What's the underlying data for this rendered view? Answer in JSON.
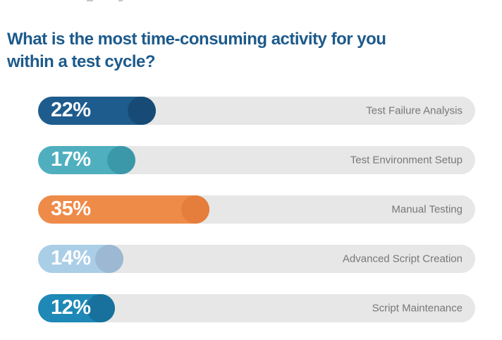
{
  "page": {
    "background": "#ffffff"
  },
  "title": {
    "lines": [
      "What is the most time-consuming activity for you",
      "within a test cycle?"
    ],
    "full": "What is the most time-consuming activity for you within a test cycle?",
    "color": "#1D5A8B"
  },
  "chart_data": {
    "type": "bar",
    "orientation": "horizontal",
    "title": "What is the most time-consuming activity for you within a test cycle?",
    "unit": "%",
    "categories": [
      "Test Failure Analysis",
      "Test Environment Setup",
      "Manual Testing",
      "Advanced Script Creation",
      "Script Maintenance"
    ],
    "values": [
      22,
      17,
      35,
      14,
      12
    ],
    "value_labels": [
      "22%",
      "17%",
      "35%",
      "14%",
      "12%"
    ],
    "bar_colors": [
      "#1E5C8D",
      "#4FAFBF",
      "#EF8B49",
      "#ABCEE7",
      "#1E88B7"
    ],
    "knob_colors": [
      "#174B76",
      "#3B98A9",
      "#E57E3C",
      "#9CB8D2",
      "#17719C"
    ],
    "track_color": "#E7E7E7",
    "category_label_color": "#777777",
    "value_text_color": "#FFFFFF",
    "xlim": [
      0,
      100
    ],
    "grid": false,
    "legend": false
  }
}
